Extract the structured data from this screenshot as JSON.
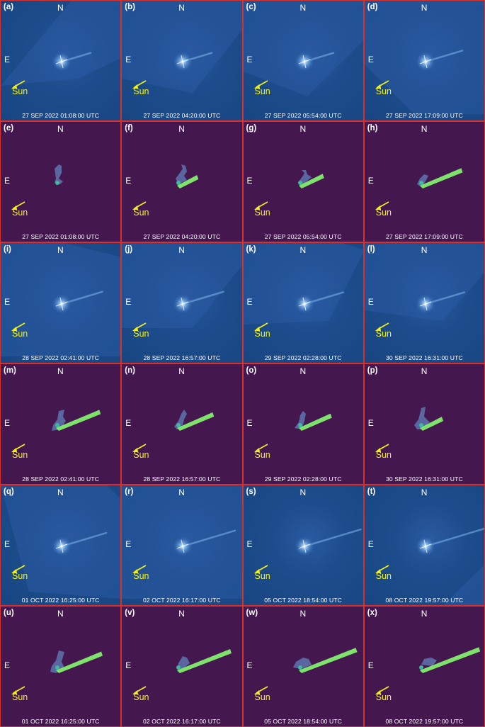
{
  "figure": {
    "compass": {
      "north": "N",
      "east": "E",
      "sun": "Sun"
    },
    "colors": {
      "observed_background": "#1d4c8c",
      "model_background": "#45174f",
      "panel_border": "#d9302a",
      "sun_arrow": "#f2f21a",
      "tail_model": "#7ee36a",
      "ejecta_model": "#5b6fa8"
    },
    "rows": [
      {
        "kind": "observed",
        "panels": [
          {
            "letter": "(a)",
            "time": "27 SEP 2022 01:08:00 UTC"
          },
          {
            "letter": "(b)",
            "time": "27 SEP 2022 04:20:00 UTC"
          },
          {
            "letter": "(c)",
            "time": "27 SEP 2022 05:54:00 UTC"
          },
          {
            "letter": "(d)",
            "time": "27 SEP 2022 17:09:00 UTC"
          }
        ]
      },
      {
        "kind": "model",
        "panels": [
          {
            "letter": "(e)",
            "time": "27 SEP 2022 01:08:00 UTC"
          },
          {
            "letter": "(f)",
            "time": "27 SEP 2022 04:20:00 UTC"
          },
          {
            "letter": "(g)",
            "time": "27 SEP 2022 05:54:00 UTC"
          },
          {
            "letter": "(h)",
            "time": "27 SEP 2022 17:09:00 UTC"
          }
        ]
      },
      {
        "kind": "observed",
        "panels": [
          {
            "letter": "(i)",
            "time": "28 SEP 2022 02:41:00 UTC"
          },
          {
            "letter": "(j)",
            "time": "28 SEP 2022 16:57:00 UTC"
          },
          {
            "letter": "(k)",
            "time": "29 SEP 2022 02:28:00 UTC"
          },
          {
            "letter": "(l)",
            "time": "30 SEP 2022 16:31:00 UTC"
          }
        ]
      },
      {
        "kind": "model",
        "panels": [
          {
            "letter": "(m)",
            "time": "28 SEP 2022 02:41:00 UTC"
          },
          {
            "letter": "(n)",
            "time": "28 SEP 2022 16:57:00 UTC"
          },
          {
            "letter": "(o)",
            "time": "29 SEP 2022 02:28:00 UTC"
          },
          {
            "letter": "(p)",
            "time": "30 SEP 2022 16:31:00 UTC"
          }
        ]
      },
      {
        "kind": "observed",
        "panels": [
          {
            "letter": "(q)",
            "time": "01 OCT 2022 16:25:00 UTC"
          },
          {
            "letter": "(r)",
            "time": "02 OCT 2022 16:17:00 UTC"
          },
          {
            "letter": "(s)",
            "time": "05 OCT 2022 18:54:00 UTC"
          },
          {
            "letter": "(t)",
            "time": "08 OCT 2022 19:57:00 UTC"
          }
        ]
      },
      {
        "kind": "model",
        "panels": [
          {
            "letter": "(u)",
            "time": "01 OCT 2022 16:25:00 UTC"
          },
          {
            "letter": "(v)",
            "time": "02 OCT 2022 16:17:00 UTC"
          },
          {
            "letter": "(w)",
            "time": "05 OCT 2022 18:54:00 UTC"
          },
          {
            "letter": "(x)",
            "time": "08 OCT 2022 19:57:00 UTC"
          }
        ]
      }
    ]
  }
}
